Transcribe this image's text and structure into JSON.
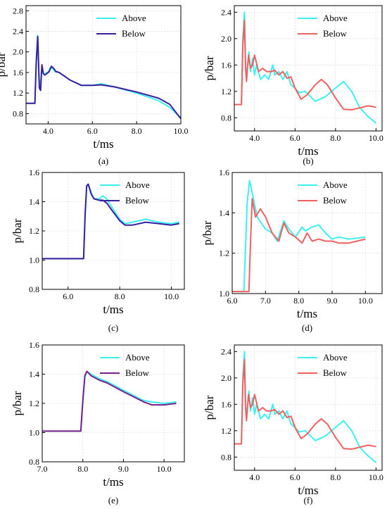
{
  "chart_data": [
    {
      "panel": "(a)",
      "type": "line",
      "xlabel": "t/ms",
      "ylabel": "p/bar",
      "xlim": [
        3.0,
        10.0
      ],
      "ylim": [
        0.6,
        2.9
      ],
      "xticks": [
        4.0,
        6.0,
        8.0,
        10.0
      ],
      "yticks": [
        0.8,
        1.2,
        1.6,
        2.0,
        2.4,
        2.8
      ],
      "legend": "top-right",
      "grid": true,
      "series": [
        {
          "name": "Above",
          "color": "#3df0f0",
          "x": [
            3.0,
            3.4,
            3.45,
            3.52,
            3.58,
            3.65,
            3.72,
            3.78,
            3.85,
            3.92,
            4.0,
            4.1,
            4.2,
            4.3,
            4.5,
            5.0,
            5.5,
            6.0,
            6.4,
            7.0,
            8.0,
            9.0,
            9.5,
            10.0
          ],
          "y": [
            1.0,
            1.0,
            1.7,
            2.32,
            1.5,
            1.35,
            1.72,
            1.6,
            1.55,
            1.6,
            1.6,
            1.7,
            1.68,
            1.62,
            1.6,
            1.45,
            1.35,
            1.35,
            1.38,
            1.32,
            1.2,
            1.05,
            0.92,
            0.72
          ]
        },
        {
          "name": "Below",
          "color": "#3a1fa0",
          "x": [
            3.0,
            3.4,
            3.46,
            3.53,
            3.6,
            3.66,
            3.72,
            3.78,
            3.85,
            3.95,
            4.05,
            4.15,
            4.25,
            4.35,
            4.5,
            5.0,
            5.5,
            6.0,
            6.4,
            7.0,
            8.0,
            9.0,
            9.5,
            10.0
          ],
          "y": [
            1.0,
            1.0,
            1.8,
            2.3,
            1.3,
            1.25,
            1.75,
            1.58,
            1.55,
            1.58,
            1.62,
            1.72,
            1.68,
            1.62,
            1.6,
            1.45,
            1.35,
            1.35,
            1.36,
            1.32,
            1.22,
            1.1,
            0.98,
            0.7
          ]
        }
      ]
    },
    {
      "panel": "(b)",
      "type": "line",
      "xlabel": "t/ms",
      "ylabel": "p/bar",
      "xlim": [
        3.0,
        10.3
      ],
      "ylim": [
        0.6,
        2.5
      ],
      "xticks": [
        4.0,
        6.0,
        8.0,
        10.0
      ],
      "yticks": [
        0.8,
        1.2,
        1.6,
        2.0,
        2.4
      ],
      "legend": "top-right",
      "grid": true,
      "series": [
        {
          "name": "Above",
          "color": "#3df0f0",
          "x": [
            3.0,
            3.35,
            3.42,
            3.5,
            3.57,
            3.65,
            3.72,
            3.8,
            3.9,
            4.0,
            4.1,
            4.3,
            4.5,
            4.7,
            4.9,
            5.0,
            5.2,
            5.4,
            5.6,
            5.8,
            6.0,
            6.2,
            6.5,
            7.0,
            7.5,
            8.0,
            8.4,
            8.8,
            9.2,
            9.6,
            10.0
          ],
          "y": [
            1.0,
            1.0,
            2.0,
            2.4,
            1.45,
            1.55,
            1.8,
            1.5,
            1.7,
            1.45,
            1.6,
            1.38,
            1.45,
            1.38,
            1.6,
            1.45,
            1.5,
            1.38,
            1.5,
            1.3,
            1.25,
            1.18,
            1.2,
            1.05,
            1.12,
            1.25,
            1.35,
            1.2,
            0.95,
            0.82,
            0.72
          ]
        },
        {
          "name": "Below",
          "color": "#f06060",
          "x": [
            3.0,
            3.35,
            3.42,
            3.5,
            3.55,
            3.6,
            3.7,
            3.8,
            3.9,
            4.0,
            4.2,
            4.4,
            4.6,
            4.8,
            5.0,
            5.2,
            5.4,
            5.6,
            5.8,
            6.0,
            6.3,
            6.6,
            7.0,
            7.3,
            7.6,
            8.0,
            8.4,
            8.8,
            9.2,
            9.6,
            10.0
          ],
          "y": [
            1.0,
            1.0,
            1.9,
            2.28,
            1.6,
            1.35,
            1.75,
            1.55,
            1.6,
            1.75,
            1.5,
            1.55,
            1.5,
            1.5,
            1.52,
            1.45,
            1.5,
            1.4,
            1.42,
            1.25,
            1.08,
            1.15,
            1.3,
            1.38,
            1.3,
            1.1,
            0.93,
            0.92,
            0.95,
            0.98,
            0.96
          ]
        }
      ]
    },
    {
      "panel": "(c)",
      "type": "line",
      "xlabel": "t/ms",
      "ylabel": "p/bar",
      "xlim": [
        5.0,
        10.5
      ],
      "ylim": [
        0.8,
        1.6
      ],
      "xticks": [
        6.0,
        8.0,
        10.0
      ],
      "yticks": [
        0.8,
        1.0,
        1.2,
        1.4,
        1.6
      ],
      "legend": "top-right",
      "grid": true,
      "series": [
        {
          "name": "Above",
          "color": "#3df0f0",
          "x": [
            5.0,
            6.6,
            6.66,
            6.72,
            6.78,
            6.9,
            7.0,
            7.2,
            7.35,
            7.5,
            7.7,
            8.0,
            8.2,
            8.5,
            9.0,
            9.5,
            10.0,
            10.3
          ],
          "y": [
            1.01,
            1.01,
            1.3,
            1.5,
            1.52,
            1.46,
            1.42,
            1.42,
            1.44,
            1.42,
            1.36,
            1.28,
            1.25,
            1.26,
            1.28,
            1.26,
            1.25,
            1.26
          ]
        },
        {
          "name": "Below",
          "color": "#3a1fa0",
          "x": [
            5.0,
            6.6,
            6.66,
            6.72,
            6.78,
            6.9,
            7.0,
            7.2,
            7.35,
            7.5,
            7.7,
            8.0,
            8.2,
            8.5,
            9.0,
            9.5,
            10.0,
            10.3
          ],
          "y": [
            1.01,
            1.01,
            1.32,
            1.51,
            1.52,
            1.45,
            1.42,
            1.41,
            1.41,
            1.39,
            1.34,
            1.27,
            1.24,
            1.24,
            1.26,
            1.25,
            1.24,
            1.25
          ]
        }
      ]
    },
    {
      "panel": "(d)",
      "type": "line",
      "xlabel": "t/ms",
      "ylabel": "p/bar",
      "xlim": [
        6.0,
        10.5
      ],
      "ylim": [
        1.0,
        1.6
      ],
      "xticks": [
        6.0,
        7.0,
        8.0,
        9.0,
        10.0
      ],
      "yticks": [
        1.0,
        1.2,
        1.4,
        1.6
      ],
      "legend": "top-right",
      "grid": true,
      "series": [
        {
          "name": "Above",
          "color": "#3df0f0",
          "x": [
            6.0,
            6.35,
            6.45,
            6.52,
            6.6,
            6.75,
            7.0,
            7.2,
            7.35,
            7.55,
            7.7,
            7.9,
            8.1,
            8.2,
            8.4,
            8.6,
            8.8,
            9.0,
            9.2,
            9.5,
            10.0
          ],
          "y": [
            1.01,
            1.01,
            1.45,
            1.56,
            1.5,
            1.38,
            1.32,
            1.3,
            1.26,
            1.36,
            1.32,
            1.28,
            1.33,
            1.31,
            1.33,
            1.34,
            1.3,
            1.27,
            1.28,
            1.27,
            1.28
          ]
        },
        {
          "name": "Below",
          "color": "#f06060",
          "x": [
            6.0,
            6.5,
            6.55,
            6.6,
            6.7,
            6.85,
            7.0,
            7.2,
            7.4,
            7.55,
            7.7,
            7.9,
            8.1,
            8.25,
            8.4,
            8.6,
            8.8,
            9.0,
            9.2,
            9.5,
            10.0
          ],
          "y": [
            1.01,
            1.01,
            1.25,
            1.47,
            1.38,
            1.42,
            1.38,
            1.3,
            1.26,
            1.35,
            1.3,
            1.28,
            1.25,
            1.3,
            1.26,
            1.27,
            1.26,
            1.26,
            1.25,
            1.25,
            1.27
          ]
        }
      ]
    },
    {
      "panel": "(e)",
      "type": "line",
      "xlabel": "t/ms",
      "ylabel": "p/bar",
      "xlim": [
        7.0,
        10.5
      ],
      "ylim": [
        0.8,
        1.6
      ],
      "xticks": [
        7.0,
        8.0,
        9.0,
        10.0
      ],
      "yticks": [
        0.8,
        1.0,
        1.2,
        1.4,
        1.6
      ],
      "legend": "top-right",
      "grid": true,
      "series": [
        {
          "name": "Above",
          "color": "#3df0f0",
          "x": [
            7.0,
            7.95,
            8.0,
            8.05,
            8.1,
            8.2,
            8.4,
            8.6,
            9.0,
            9.5,
            9.7,
            10.0,
            10.3
          ],
          "y": [
            1.01,
            1.01,
            1.2,
            1.38,
            1.42,
            1.4,
            1.37,
            1.35,
            1.29,
            1.22,
            1.21,
            1.2,
            1.21
          ]
        },
        {
          "name": "Below",
          "color": "#7b1f8a",
          "x": [
            7.0,
            7.95,
            8.0,
            8.05,
            8.1,
            8.2,
            8.4,
            8.6,
            9.0,
            9.5,
            9.7,
            10.0,
            10.3
          ],
          "y": [
            1.01,
            1.01,
            1.22,
            1.39,
            1.42,
            1.39,
            1.36,
            1.34,
            1.28,
            1.21,
            1.19,
            1.19,
            1.2
          ]
        }
      ]
    },
    {
      "panel": "(f)",
      "type": "line",
      "xlabel": "t/ms",
      "ylabel": "p/bar",
      "xlim": [
        3.0,
        10.3
      ],
      "ylim": [
        0.6,
        2.5
      ],
      "xticks": [
        4.0,
        6.0,
        8.0,
        10.0
      ],
      "yticks": [
        0.8,
        1.2,
        1.6,
        2.0,
        2.4
      ],
      "legend": "top-right",
      "grid": true,
      "series": [
        {
          "name": "Above",
          "color": "#3df0f0",
          "x": [
            3.0,
            3.35,
            3.42,
            3.5,
            3.57,
            3.65,
            3.72,
            3.8,
            3.9,
            4.0,
            4.1,
            4.3,
            4.5,
            4.7,
            4.9,
            5.0,
            5.2,
            5.4,
            5.6,
            5.8,
            6.0,
            6.2,
            6.5,
            7.0,
            7.5,
            8.0,
            8.4,
            8.8,
            9.2,
            9.6,
            10.0
          ],
          "y": [
            1.0,
            1.0,
            2.0,
            2.4,
            1.45,
            1.55,
            1.8,
            1.5,
            1.7,
            1.45,
            1.6,
            1.38,
            1.45,
            1.38,
            1.6,
            1.45,
            1.5,
            1.38,
            1.5,
            1.3,
            1.25,
            1.18,
            1.2,
            1.05,
            1.12,
            1.25,
            1.35,
            1.2,
            0.95,
            0.82,
            0.72
          ]
        },
        {
          "name": "Below",
          "color": "#f06060",
          "x": [
            3.0,
            3.35,
            3.42,
            3.5,
            3.55,
            3.6,
            3.7,
            3.8,
            3.9,
            4.0,
            4.2,
            4.4,
            4.6,
            4.8,
            5.0,
            5.2,
            5.4,
            5.6,
            5.8,
            6.0,
            6.3,
            6.6,
            7.0,
            7.3,
            7.6,
            8.0,
            8.4,
            8.8,
            9.2,
            9.6,
            10.0
          ],
          "y": [
            1.0,
            1.0,
            1.9,
            2.28,
            1.6,
            1.35,
            1.75,
            1.55,
            1.6,
            1.75,
            1.5,
            1.55,
            1.5,
            1.5,
            1.52,
            1.45,
            1.5,
            1.4,
            1.42,
            1.25,
            1.08,
            1.15,
            1.3,
            1.38,
            1.3,
            1.1,
            0.93,
            0.92,
            0.95,
            0.98,
            0.96
          ]
        }
      ]
    }
  ]
}
